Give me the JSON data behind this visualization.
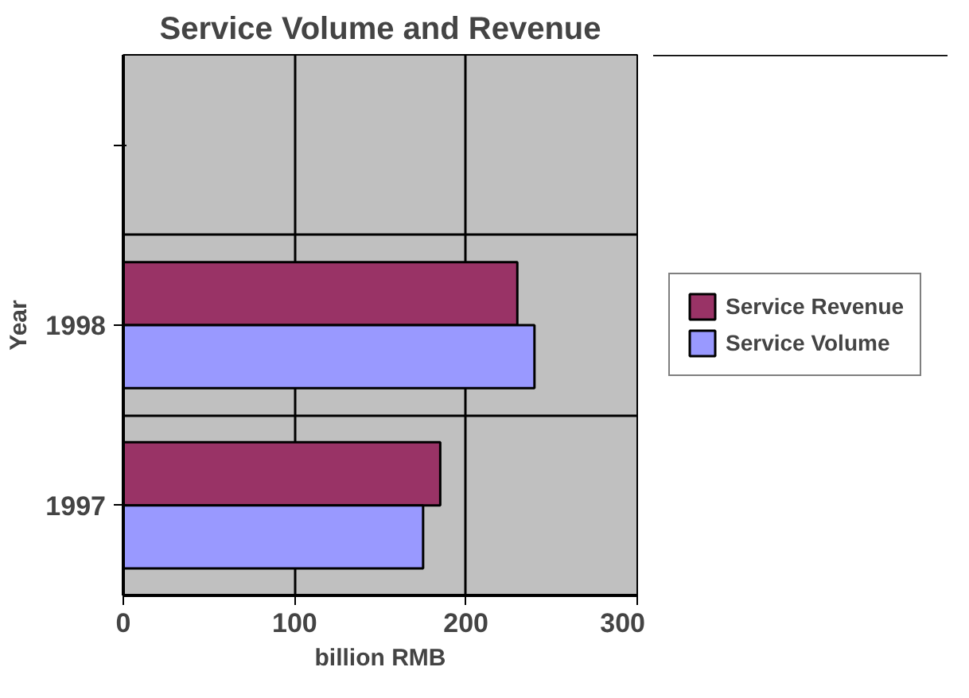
{
  "chart_data": {
    "type": "bar",
    "orientation": "horizontal",
    "title": "Service Volume and Revenue",
    "xlabel": "billion RMB",
    "ylabel": "Year",
    "categories": [
      null,
      "1998",
      "1997"
    ],
    "series": [
      {
        "name": "Service Revenue",
        "color": "#993366",
        "values": [
          null,
          230,
          185
        ]
      },
      {
        "name": "Service Volume",
        "color": "#9999ff",
        "values": [
          null,
          240,
          175
        ]
      }
    ],
    "xlim": [
      0,
      300
    ],
    "xticks": [
      0,
      100,
      200,
      300
    ],
    "grid": true,
    "legend": "right"
  }
}
